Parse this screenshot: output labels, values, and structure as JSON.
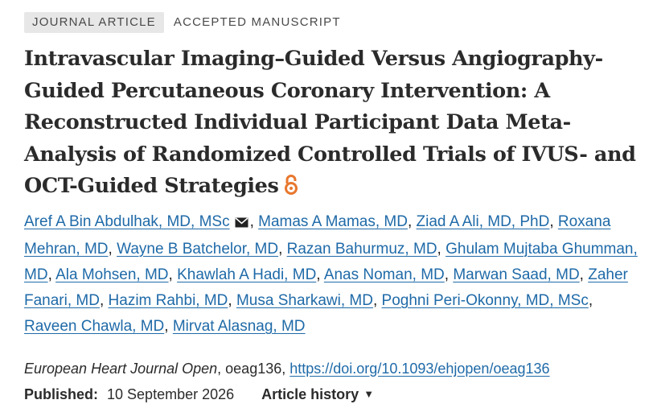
{
  "badges": {
    "type": "JOURNAL ARTICLE",
    "status": "ACCEPTED MANUSCRIPT"
  },
  "title": "Intravascular Imaging–Guided Versus Angiography-Guided Percutaneous Coronary Intervention: A Reconstructed Individual Participant Data Meta-Analysis of Randomized Controlled Trials of IVUS- and OCT-Guided Strategies",
  "open_access_icon": "open-access-lock-icon",
  "authors": [
    "Aref A Bin Abdulhak, MD, MSc",
    "Mamas A Mamas, MD",
    "Ziad A Ali, MD, PhD",
    "Roxana Mehran, MD",
    "Wayne B Batchelor, MD",
    "Razan Bahurmuz, MD",
    "Ghulam Mujtaba Ghumman, MD",
    "Ala Mohsen, MD",
    "Khawlah A Hadi, MD",
    "Anas Noman, MD",
    "Marwan Saad, MD",
    "Zaher Fanari, MD",
    "Hazim Rahbi, MD",
    "Musa Sharkawi, MD",
    "Poghni Peri-Okonny, MD, MSc",
    "Raveen Chawla, MD",
    "Mirvat Alasnag, MD"
  ],
  "author_separator": ", ",
  "citation": {
    "journal": "European Heart Journal Open",
    "article_id": ", oeag136, ",
    "doi": "https://doi.org/10.1093/ehjopen/oeag136"
  },
  "published": {
    "label": "Published:",
    "date": "10 September 2026"
  },
  "history": {
    "label": "Article history",
    "caret": "▼"
  },
  "colors": {
    "link": "#1f6aa8",
    "open_access": "#e8772e",
    "badge_bg": "#e7e7e7"
  }
}
